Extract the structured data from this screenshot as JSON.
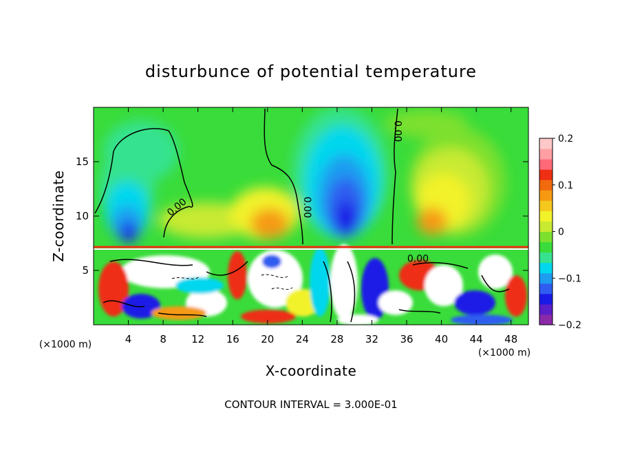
{
  "chart_data": {
    "type": "heatmap",
    "title": "disturbunce of potential temperature",
    "xlabel": "X-coordinate",
    "ylabel": "Z-coordinate",
    "x_unit_left": "(×1000 m)",
    "x_unit_right": "(×1000 m)",
    "footer": "CONTOUR INTERVAL = 3.000E-01",
    "xlim": [
      0,
      50
    ],
    "ylim": [
      0,
      20
    ],
    "x_ticks": [
      4,
      8,
      12,
      16,
      20,
      24,
      28,
      32,
      36,
      40,
      44,
      48
    ],
    "x_tick_labels": [
      "4",
      "8",
      "12",
      "16",
      "20",
      "24",
      "28",
      "32",
      "36",
      "40",
      "44",
      "48"
    ],
    "y_ticks": [
      5,
      10,
      15
    ],
    "y_tick_labels": [
      "5",
      "10",
      "15"
    ],
    "colorbar": {
      "range": [
        -0.2,
        0.2
      ],
      "ticks": [
        0.2,
        0.1,
        0,
        -0.1,
        -0.2
      ],
      "tick_labels": [
        "0.2",
        "0.1",
        "0",
        "−0.1",
        "−0.2"
      ],
      "colors": [
        "#8b2aa8",
        "#5a1fc8",
        "#1a1ae6",
        "#2f5df0",
        "#1e9cf0",
        "#00d7ee",
        "#36e28f",
        "#39dc3a",
        "#7de02e",
        "#c8ea30",
        "#f2f22a",
        "#f5c81e",
        "#f59a12",
        "#f26a0e",
        "#ee2f14",
        "#ff6a78",
        "#ff9fa4",
        "#ffc8c8"
      ]
    },
    "contour_labels": [
      {
        "text": "0.00",
        "x": 9.8,
        "z": 10.6,
        "rotate": -40
      },
      {
        "text": "0.00",
        "x": 24.2,
        "z": 10.8,
        "rotate": 90
      },
      {
        "text": "0.00",
        "x": 34.6,
        "z": 17.8,
        "rotate": 90
      },
      {
        "text": "0.00",
        "x": 37.3,
        "z": 5.8,
        "rotate": 0
      }
    ]
  }
}
